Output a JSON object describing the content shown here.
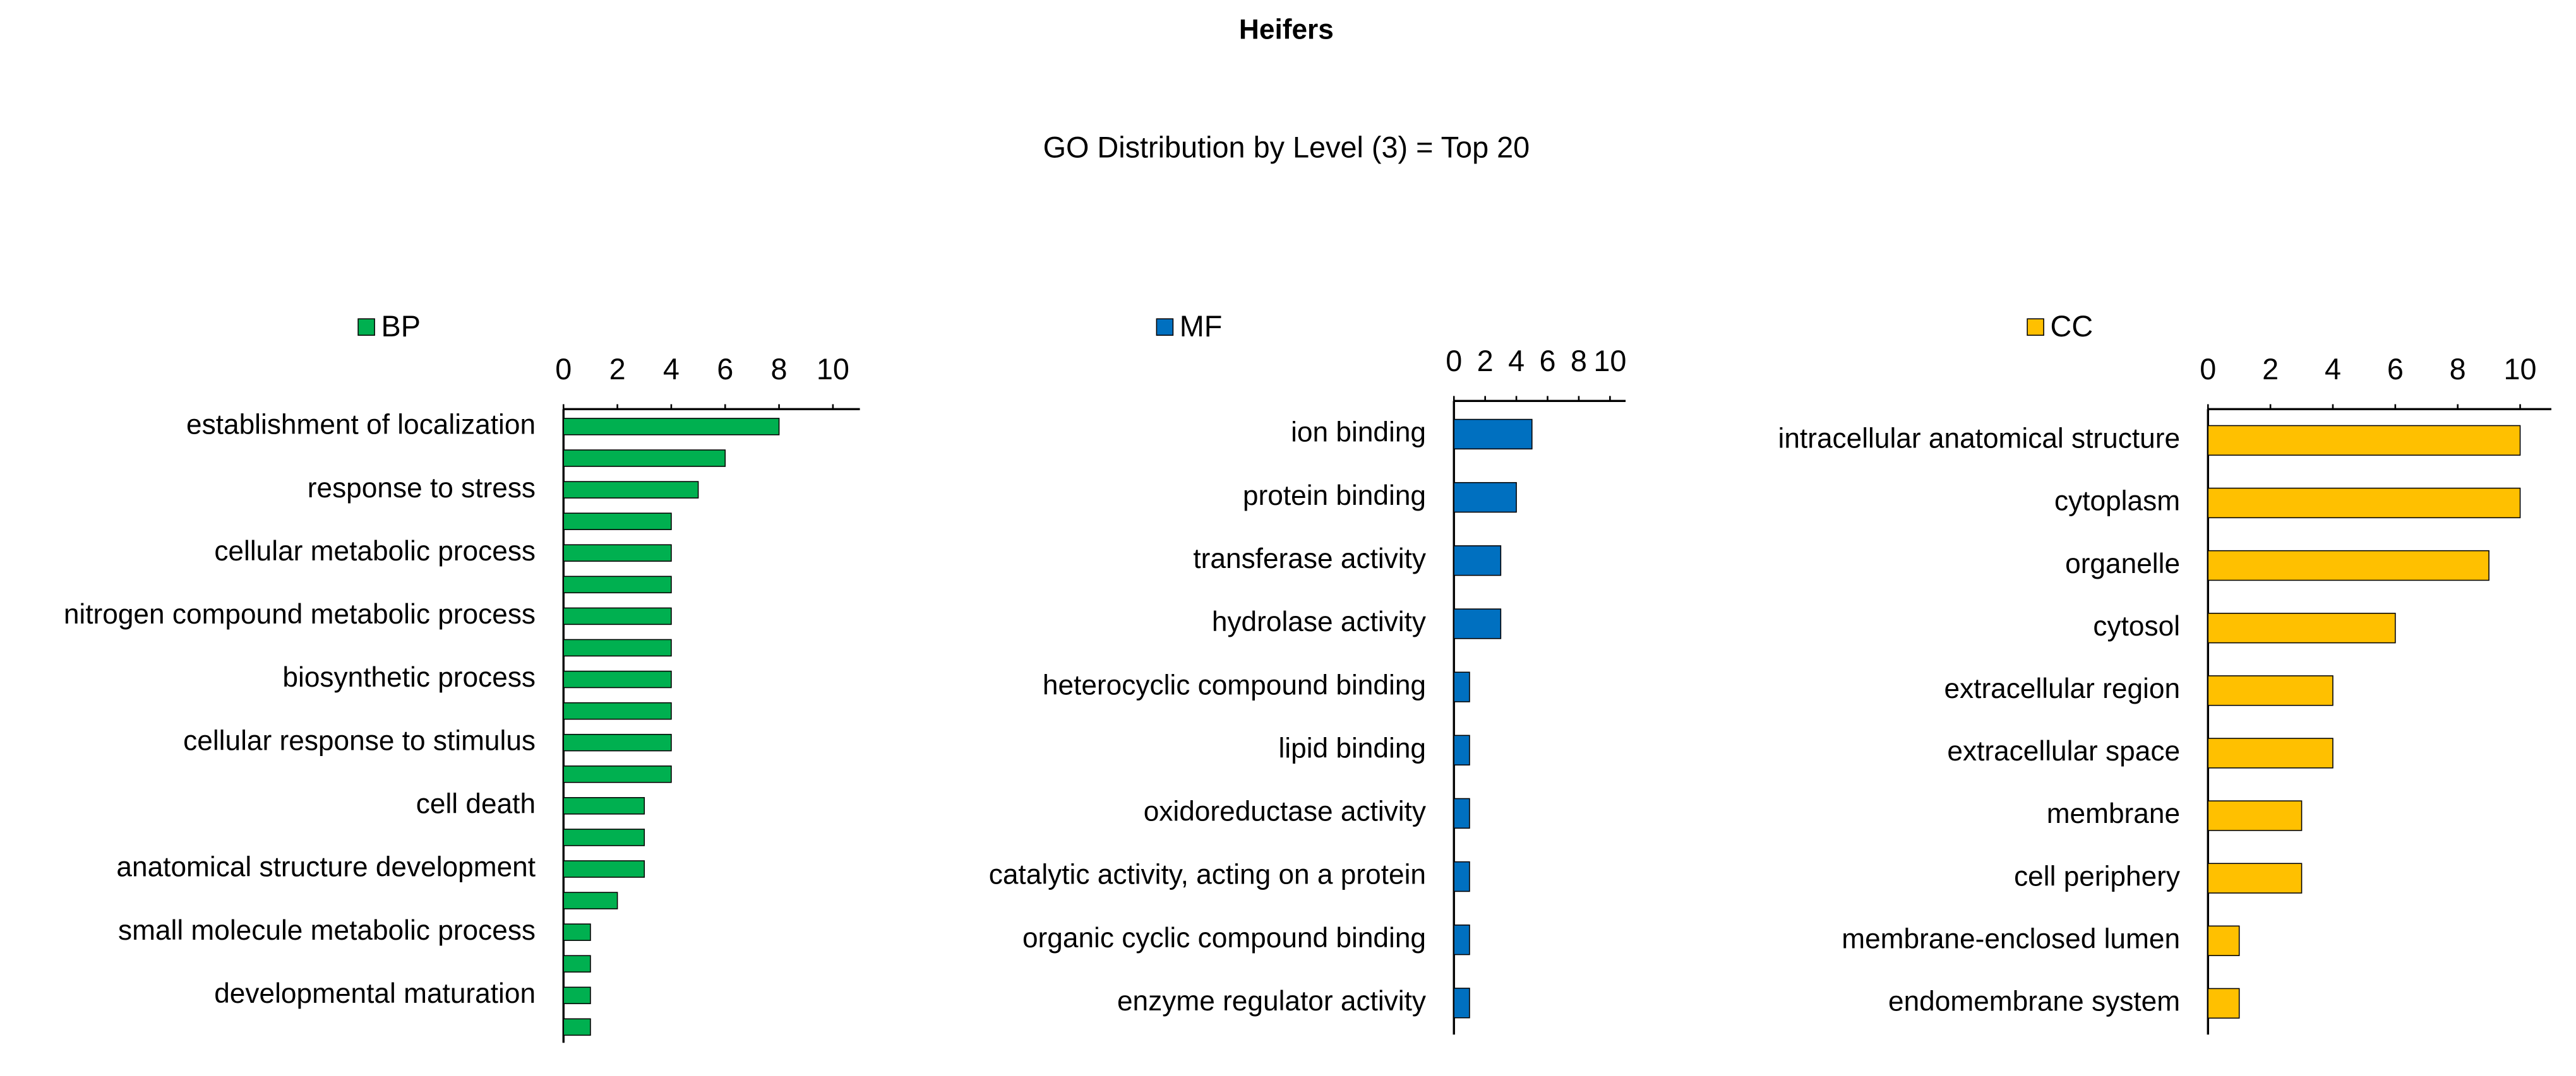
{
  "title": "Heifers",
  "subtitle": "GO Distribution by Level (3) = Top 20",
  "chart_data": [
    {
      "type": "bar",
      "orientation": "horizontal",
      "categories": [
        "establishment of localization",
        null,
        "response to stress",
        null,
        "cellular metabolic process",
        null,
        "nitrogen compound metabolic process",
        null,
        "biosynthetic process",
        null,
        "cellular response to stimulus",
        null,
        "cell death",
        null,
        "anatomical structure development",
        null,
        "small molecule metabolic process",
        null,
        "developmental maturation",
        null
      ],
      "series": [
        {
          "name": "BP",
          "color": "#00b050",
          "values": [
            8,
            6,
            5,
            4,
            4,
            4,
            4,
            4,
            4,
            4,
            4,
            4,
            3,
            3,
            3,
            2,
            1,
            1,
            1,
            1
          ]
        }
      ],
      "xlim": [
        0,
        11
      ],
      "xticks": [
        0,
        2,
        4,
        6,
        8,
        10
      ]
    },
    {
      "type": "bar",
      "orientation": "horizontal",
      "categories": [
        "ion binding",
        "protein binding",
        "transferase activity",
        "hydrolase activity",
        "heterocyclic compound binding",
        "lipid binding",
        "oxidoreductase activity",
        "catalytic activity, acting on a protein",
        "organic cyclic compound binding",
        "enzyme regulator activity"
      ],
      "series": [
        {
          "name": "MF",
          "color": "#0070c0",
          "values": [
            5,
            4,
            3,
            3,
            1,
            1,
            1,
            1,
            1,
            1
          ]
        }
      ],
      "xlim": [
        0,
        11
      ],
      "xticks": [
        0,
        2,
        4,
        6,
        8,
        10
      ]
    },
    {
      "type": "bar",
      "orientation": "horizontal",
      "categories": [
        "intracellular anatomical structure",
        "cytoplasm",
        "organelle",
        "cytosol",
        "extracellular region",
        "extracellular space",
        "membrane",
        "cell periphery",
        "membrane-enclosed lumen",
        "endomembrane system"
      ],
      "series": [
        {
          "name": "CC",
          "color": "#ffc000",
          "values": [
            10,
            10,
            9,
            6,
            4,
            4,
            3,
            3,
            1,
            1
          ]
        }
      ],
      "xlim": [
        0,
        11
      ],
      "xticks": [
        0,
        2,
        4,
        6,
        8,
        10
      ]
    }
  ]
}
